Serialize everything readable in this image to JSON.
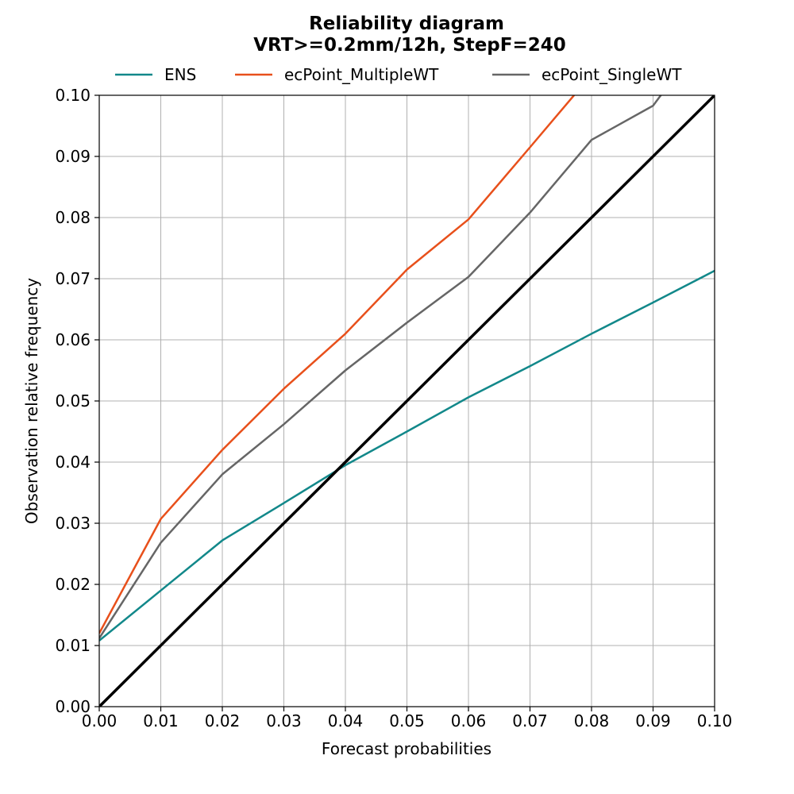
{
  "chart_data": {
    "type": "line",
    "title": "Reliability diagram",
    "subtitle": "VRT>=0.2mm/12h, StepF=240",
    "xlabel": "Forecast probabilities",
    "ylabel": "Observation relative frequency",
    "xlim": [
      0,
      0.1
    ],
    "ylim": [
      0,
      0.1
    ],
    "x_ticks": [
      "0.00",
      "0.01",
      "0.02",
      "0.03",
      "0.04",
      "0.05",
      "0.06",
      "0.07",
      "0.08",
      "0.09",
      "0.10"
    ],
    "y_ticks": [
      "0.00",
      "0.01",
      "0.02",
      "0.03",
      "0.04",
      "0.05",
      "0.06",
      "0.07",
      "0.08",
      "0.09",
      "0.10"
    ],
    "grid": true,
    "legend_position": "top",
    "diagonal": {
      "points": [
        [
          0,
          0
        ],
        [
          0.1,
          0.1
        ]
      ],
      "color": "#000000"
    },
    "series": [
      {
        "name": "ENS",
        "color": "#12888a",
        "points": [
          [
            0,
            0.0108
          ],
          [
            0.01,
            0.019
          ],
          [
            0.02,
            0.0272
          ],
          [
            0.03,
            0.0333
          ],
          [
            0.04,
            0.0395
          ],
          [
            0.05,
            0.045
          ],
          [
            0.06,
            0.0506
          ],
          [
            0.07,
            0.0557
          ],
          [
            0.08,
            0.061
          ],
          [
            0.09,
            0.0661
          ],
          [
            0.1,
            0.0713
          ]
        ]
      },
      {
        "name": "ecPoint_MultipleWT",
        "color": "#e8501b",
        "points": [
          [
            0,
            0.012
          ],
          [
            0.01,
            0.0307
          ],
          [
            0.02,
            0.042
          ],
          [
            0.03,
            0.052
          ],
          [
            0.04,
            0.061
          ],
          [
            0.05,
            0.0715
          ],
          [
            0.06,
            0.0797
          ],
          [
            0.07,
            0.0915
          ],
          [
            0.078,
            0.101
          ]
        ]
      },
      {
        "name": "ecPoint_SingleWT",
        "color": "#666666",
        "points": [
          [
            0,
            0.0112
          ],
          [
            0.01,
            0.0268
          ],
          [
            0.02,
            0.038
          ],
          [
            0.03,
            0.0462
          ],
          [
            0.04,
            0.055
          ],
          [
            0.05,
            0.0628
          ],
          [
            0.06,
            0.0703
          ],
          [
            0.07,
            0.0808
          ],
          [
            0.08,
            0.0927
          ],
          [
            0.09,
            0.0983
          ],
          [
            0.092,
            0.101
          ]
        ]
      }
    ]
  }
}
